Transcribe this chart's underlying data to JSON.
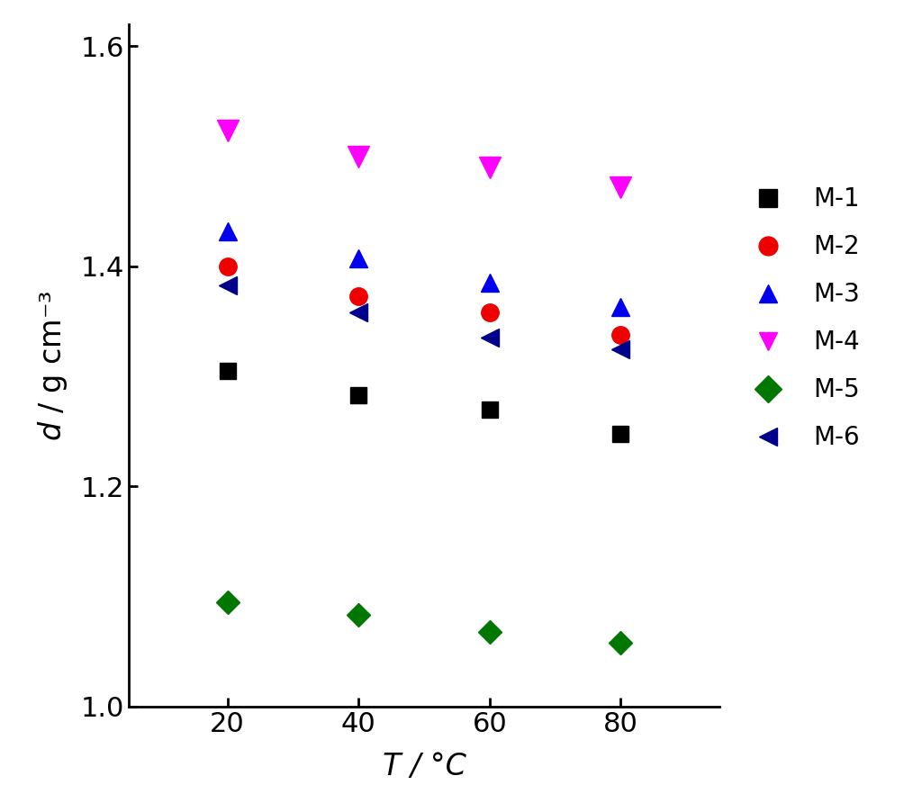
{
  "title": "",
  "xlabel": "T / °C",
  "ylabel_italic": "d",
  "ylabel_rest": " / g cm⁻³",
  "xlim": [
    5,
    95
  ],
  "ylim": [
    1.0,
    1.62
  ],
  "xticks": [
    20,
    40,
    60,
    80
  ],
  "yticks": [
    1.0,
    1.2,
    1.4,
    1.6
  ],
  "x": [
    20,
    40,
    60,
    80
  ],
  "series": [
    {
      "label": "M-1",
      "color": "#000000",
      "marker": "s",
      "markersize": 13,
      "values": [
        1.305,
        1.283,
        1.27,
        1.248
      ]
    },
    {
      "label": "M-2",
      "color": "#ee0000",
      "marker": "o",
      "markersize": 14,
      "values": [
        1.4,
        1.373,
        1.358,
        1.338
      ]
    },
    {
      "label": "M-3",
      "color": "#0000ee",
      "marker": "^",
      "markersize": 15,
      "values": [
        1.432,
        1.407,
        1.385,
        1.363
      ]
    },
    {
      "label": "M-4",
      "color": "#ff00ff",
      "marker": "v",
      "markersize": 17,
      "values": [
        1.523,
        1.5,
        1.49,
        1.472
      ]
    },
    {
      "label": "M-5",
      "color": "#007700",
      "marker": "D",
      "markersize": 13,
      "values": [
        1.095,
        1.083,
        1.068,
        1.058
      ]
    },
    {
      "label": "M-6",
      "color": "#00008b",
      "marker": "<",
      "markersize": 15,
      "values": [
        1.383,
        1.358,
        1.335,
        1.325
      ]
    }
  ],
  "background_color": "#ffffff",
  "legend_fontsize": 20,
  "axis_label_fontsize": 24,
  "tick_fontsize": 22,
  "spine_linewidth": 2.0,
  "figure_width": 10.24,
  "figure_height": 8.92
}
